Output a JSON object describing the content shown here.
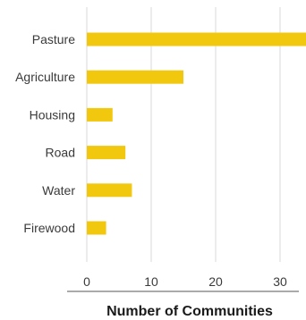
{
  "chart_data": {
    "type": "bar",
    "orientation": "horizontal",
    "categories": [
      "Pasture",
      "Agriculture",
      "Housing",
      "Road",
      "Water",
      "Firewood"
    ],
    "values": [
      37,
      15,
      4,
      6,
      7,
      3
    ],
    "xlabel": "Number of Communities",
    "ylabel": "",
    "xlim": [
      0,
      38
    ],
    "xticks": [
      0,
      10,
      20,
      30
    ],
    "grid": "vertical",
    "bar_color": "#f2c80f",
    "grid_color": "#d9d9d9",
    "axis_color": "#555555"
  }
}
